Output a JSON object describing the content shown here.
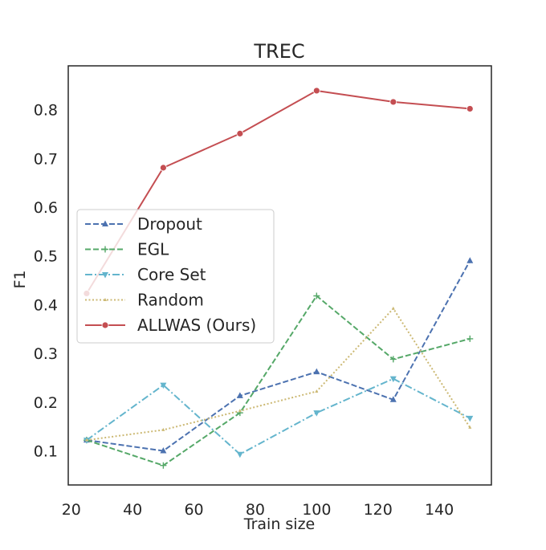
{
  "chart_data": {
    "type": "line",
    "title": "TREC",
    "xlabel": "Train size",
    "ylabel": "F1",
    "xlim": [
      19,
      157
    ],
    "ylim": [
      0.03,
      0.89
    ],
    "xticks": [
      20,
      40,
      60,
      80,
      100,
      120,
      140
    ],
    "yticks": [
      0.1,
      0.2,
      0.3,
      0.4,
      0.5,
      0.6,
      0.7,
      0.8
    ],
    "grid": false,
    "legend_position": "center-left",
    "x": [
      25,
      50,
      75,
      100,
      125,
      150
    ],
    "series": [
      {
        "name": "Dropout",
        "values": [
          0.122,
          0.1,
          0.213,
          0.262,
          0.205,
          0.49
        ],
        "color": "#4c72b0",
        "line_style": "dashed",
        "marker": "triangle-up"
      },
      {
        "name": "EGL",
        "values": [
          0.122,
          0.07,
          0.178,
          0.418,
          0.288,
          0.33
        ],
        "color": "#55a868",
        "line_style": "dashed",
        "marker": "plus"
      },
      {
        "name": "Core Set",
        "values": [
          0.122,
          0.235,
          0.093,
          0.178,
          0.248,
          0.167
        ],
        "color": "#64b5cd",
        "line_style": "dashdot",
        "marker": "triangle-down"
      },
      {
        "name": "Random",
        "values": [
          0.122,
          0.143,
          0.182,
          0.222,
          0.392,
          0.148
        ],
        "color": "#ccb974",
        "line_style": "dotted",
        "marker": "small-triangle"
      },
      {
        "name": "ALLWAS (Ours)",
        "values": [
          0.423,
          0.681,
          0.751,
          0.839,
          0.816,
          0.802
        ],
        "color": "#c44e52",
        "line_style": "solid",
        "marker": "circle"
      }
    ]
  }
}
